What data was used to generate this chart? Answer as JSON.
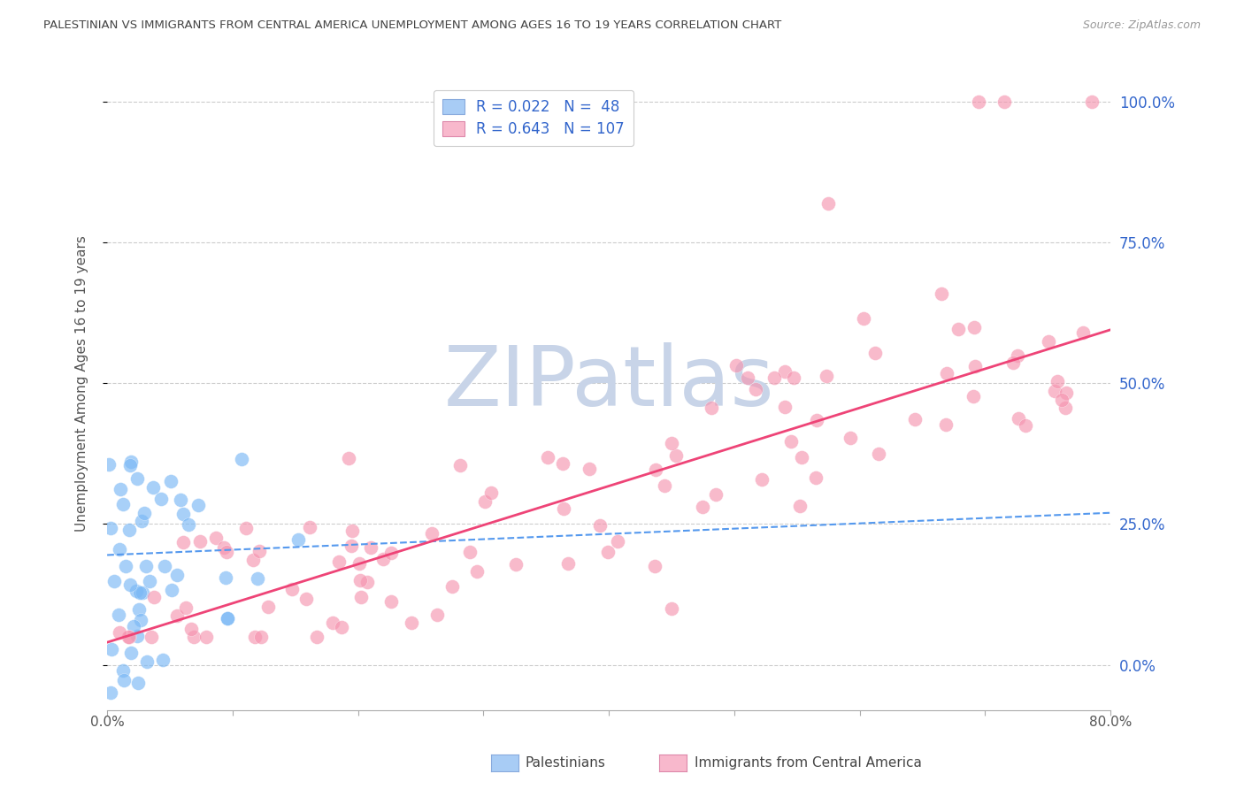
{
  "title": "PALESTINIAN VS IMMIGRANTS FROM CENTRAL AMERICA UNEMPLOYMENT AMONG AGES 16 TO 19 YEARS CORRELATION CHART",
  "source": "Source: ZipAtlas.com",
  "ylabel": "Unemployment Among Ages 16 to 19 years",
  "xlim": [
    0.0,
    0.8
  ],
  "ylim": [
    -0.08,
    1.08
  ],
  "yticks": [
    0.0,
    0.25,
    0.5,
    0.75,
    1.0
  ],
  "ytick_labels": [
    "0.0%",
    "25.0%",
    "50.0%",
    "75.0%",
    "100.0%"
  ],
  "xtick_labels": [
    "0.0%",
    "",
    "",
    "",
    "",
    "",
    "",
    "",
    "80.0%"
  ],
  "legend_R1": "R = 0.022",
  "legend_N1": "N =  48",
  "legend_R2": "R = 0.643",
  "legend_N2": "N = 107",
  "legend_label1": "Palestinians",
  "legend_label2": "Immigrants from Central America",
  "bg_color": "#ffffff",
  "scatter_blue_color": "#7ab8f5",
  "scatter_pink_color": "#f595b0",
  "line_blue_color": "#5599ee",
  "line_pink_color": "#ee4477",
  "grid_color": "#cccccc",
  "title_color": "#444444",
  "axis_label_color": "#666666",
  "right_tick_color": "#3366cc",
  "watermark_color": "#c8d4e8",
  "blue_line_y0": 0.195,
  "blue_line_y1": 0.27,
  "pink_line_y0": 0.04,
  "pink_line_y1": 0.595
}
